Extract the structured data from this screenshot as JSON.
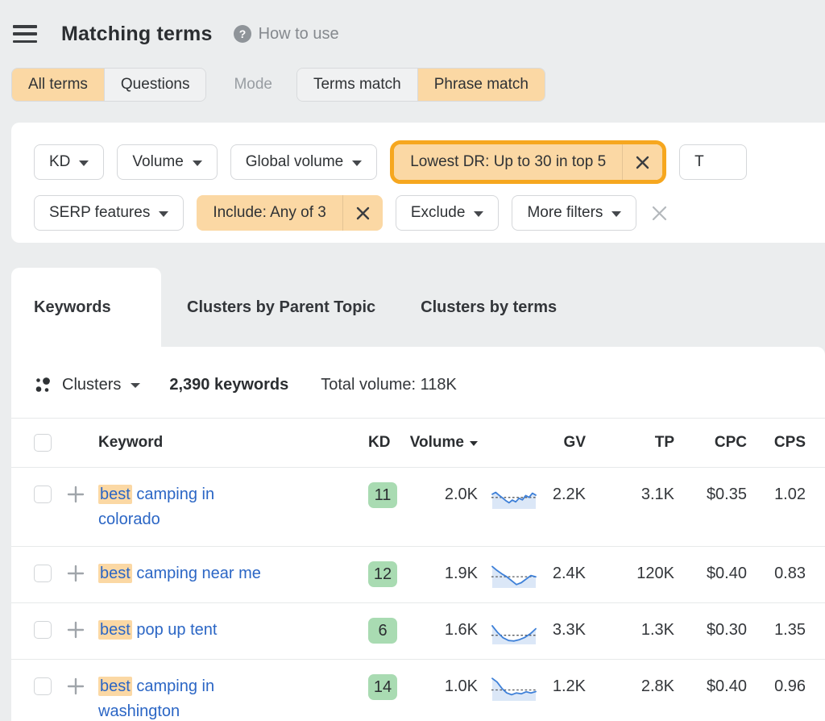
{
  "header": {
    "title": "Matching terms",
    "help_label": "How to use"
  },
  "mode_bar": {
    "term_tabs": [
      {
        "label": "All terms",
        "selected": true
      },
      {
        "label": "Questions",
        "selected": false
      }
    ],
    "mode_label": "Mode",
    "match_tabs": [
      {
        "label": "Terms match",
        "selected": false
      },
      {
        "label": "Phrase match",
        "selected": true
      }
    ]
  },
  "filters": {
    "kd": "KD",
    "volume": "Volume",
    "global_volume": "Global volume",
    "lowest_dr_chip": "Lowest DR: Up to 30 in top 5",
    "truncated_button": "T",
    "serp_features": "SERP features",
    "include_chip": "Include: Any of 3",
    "exclude": "Exclude",
    "more_filters": "More filters"
  },
  "tabs": [
    {
      "label": "Keywords",
      "active": true
    },
    {
      "label": "Clusters by Parent Topic",
      "active": false
    },
    {
      "label": "Clusters by terms",
      "active": false
    }
  ],
  "toolbar": {
    "clusters_label": "Clusters",
    "keywords_count": "2,390 keywords",
    "total_volume": "Total volume: 118K"
  },
  "table": {
    "columns": {
      "keyword": "Keyword",
      "kd": "KD",
      "volume": "Volume",
      "gv": "GV",
      "tp": "TP",
      "cpc": "CPC",
      "cps": "CPS"
    },
    "rows": [
      {
        "kw_hl": "best",
        "kw_rest": " camping in colorado",
        "kd": "11",
        "volume": "2.0K",
        "gv": "2.2K",
        "tp": "3.1K",
        "cpc": "$0.35",
        "cps": "1.02",
        "spark": [
          58,
          66,
          54,
          42,
          30,
          20,
          32,
          24,
          40,
          33,
          52,
          44,
          62,
          54
        ]
      },
      {
        "kw_hl": "best",
        "kw_rest": " camping near me",
        "kd": "12",
        "volume": "1.9K",
        "gv": "2.4K",
        "tp": "120K",
        "cpc": "$0.40",
        "cps": "0.83",
        "spark": [
          88,
          70,
          55,
          42,
          25,
          8,
          16,
          32,
          48,
          42
        ]
      },
      {
        "kw_hl": "best",
        "kw_rest": " pop up tent",
        "kd": "6",
        "volume": "1.6K",
        "gv": "3.3K",
        "tp": "1.3K",
        "cpc": "$0.30",
        "cps": "1.35",
        "spark": [
          75,
          45,
          22,
          10,
          8,
          14,
          24,
          40,
          62
        ]
      },
      {
        "kw_hl": "best",
        "kw_rest": " camping in washington",
        "kd": "14",
        "volume": "1.0K",
        "gv": "1.2K",
        "tp": "2.8K",
        "cpc": "$0.40",
        "cps": "0.96",
        "spark": [
          92,
          76,
          48,
          28,
          20,
          28,
          24,
          33,
          28,
          34
        ]
      }
    ]
  },
  "icons": {
    "hamburger-icon": "three horizontal bars",
    "question-circle-icon": "gray circle with white ?",
    "caret-down-icon": "▾",
    "close-x-icon": "✕",
    "cluster-dots-icon": "four dots",
    "plus-icon": "+",
    "sort-desc-icon": "▼",
    "checkbox": "empty rounded square"
  },
  "colors": {
    "page_bg": "#ebedee",
    "card_bg": "#ffffff",
    "peach_chip": "#fbd8a4",
    "highlight_border": "#f6a71f",
    "kd_badge_green": "#a9dbb2",
    "link_blue": "#2b66c5",
    "spark_line_blue": "#3e80d8",
    "spark_fill": "#d9e6f7",
    "muted_text": "#85898e"
  }
}
